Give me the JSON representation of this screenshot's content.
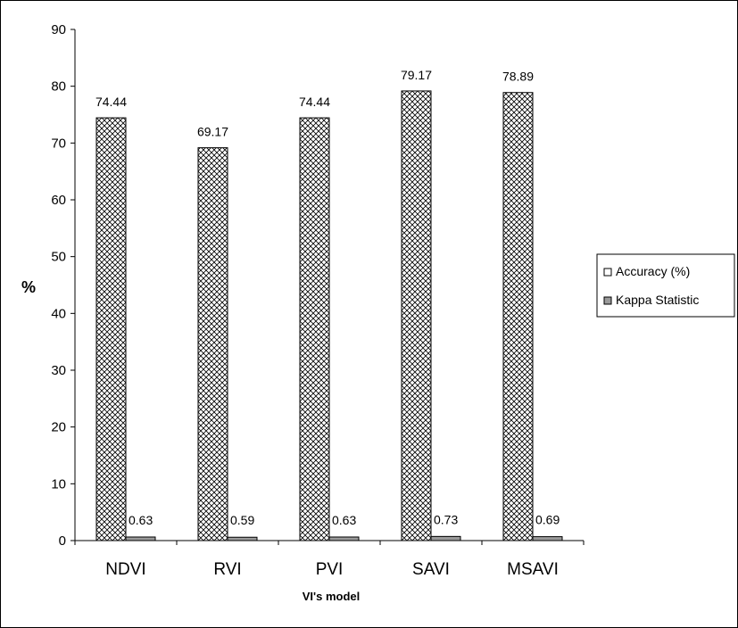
{
  "chart_data": {
    "type": "bar",
    "title": "",
    "xlabel": "VI's model",
    "ylabel": "%",
    "ylim": [
      0,
      90
    ],
    "yticks": [
      0,
      10,
      20,
      30,
      40,
      50,
      60,
      70,
      80,
      90
    ],
    "categories": [
      "NDVI",
      "RVI",
      "PVI",
      "SAVI",
      "MSAVI"
    ],
    "series": [
      {
        "name": "Accuracy (%)",
        "values": [
          74.44,
          69.17,
          74.44,
          79.17,
          78.89
        ],
        "labels": [
          "74.44",
          "69.17",
          "74.44",
          "79.17",
          "78.89"
        ],
        "fill": "crosshatch"
      },
      {
        "name": "Kappa Statistic",
        "values": [
          0.63,
          0.59,
          0.63,
          0.73,
          0.69
        ],
        "labels": [
          "0.63",
          "0.59",
          "0.63",
          "0.73",
          "0.69"
        ],
        "fill": "#9a9a9a"
      }
    ],
    "legend": "right",
    "grid": false
  }
}
